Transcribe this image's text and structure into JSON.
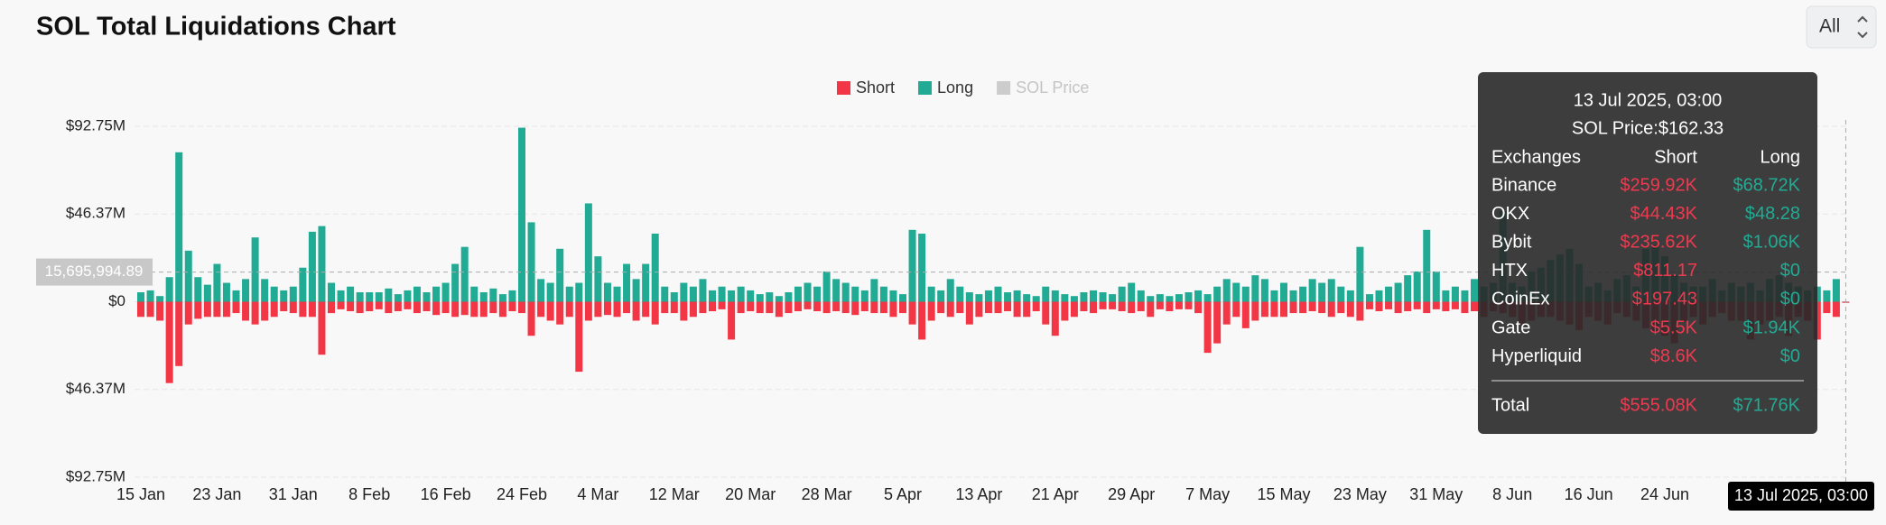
{
  "chart_data": {
    "type": "bar",
    "title": "SOL Total Liquidations Chart",
    "selector": "All",
    "categories": [
      "15 Jan",
      null,
      null,
      null,
      null,
      null,
      null,
      null,
      "23 Jan",
      null,
      null,
      null,
      null,
      null,
      null,
      null,
      "31 Jan",
      null,
      null,
      null,
      null,
      null,
      null,
      null,
      "8 Feb",
      null,
      null,
      null,
      null,
      null,
      null,
      null,
      "16 Feb",
      null,
      null,
      null,
      null,
      null,
      null,
      null,
      "24 Feb",
      null,
      null,
      null,
      null,
      null,
      null,
      null,
      "4 Mar",
      null,
      null,
      null,
      null,
      null,
      null,
      null,
      "12 Mar",
      null,
      null,
      null,
      null,
      null,
      null,
      null,
      "20 Mar",
      null,
      null,
      null,
      null,
      null,
      null,
      null,
      "28 Mar",
      null,
      null,
      null,
      null,
      null,
      null,
      null,
      "5 Apr",
      null,
      null,
      null,
      null,
      null,
      null,
      null,
      "13 Apr",
      null,
      null,
      null,
      null,
      null,
      null,
      null,
      "21 Apr",
      null,
      null,
      null,
      null,
      null,
      null,
      null,
      "29 Apr",
      null,
      null,
      null,
      null,
      null,
      null,
      null,
      "7 May",
      null,
      null,
      null,
      null,
      null,
      null,
      null,
      "15 May",
      null,
      null,
      null,
      null,
      null,
      null,
      null,
      "23 May",
      null,
      null,
      null,
      null,
      null,
      null,
      null,
      "31 May",
      null,
      null,
      null,
      null,
      null,
      null,
      null,
      "8 Jun",
      null,
      null,
      null,
      null,
      null,
      null,
      null,
      "16 Jun",
      null,
      null,
      null,
      null,
      null,
      null,
      null,
      "24 Jun",
      null,
      null,
      null,
      null,
      null,
      null,
      null,
      null,
      null,
      null,
      null,
      null,
      null,
      null,
      null,
      null,
      null,
      null,
      null
    ],
    "series": [
      {
        "name": "Short",
        "color": "#f23645",
        "values": [
          -8,
          -8,
          -10,
          -43,
          -34,
          -12,
          -9,
          -8,
          -8,
          -8,
          -6,
          -10,
          -12,
          -10,
          -8,
          -5,
          -6,
          -8,
          -8,
          -28,
          -6,
          -4,
          -5,
          -6,
          -5,
          -4,
          -6,
          -5,
          -4,
          -6,
          -5,
          -7,
          -6,
          -8,
          -7,
          -8,
          -8,
          -6,
          -8,
          -5,
          -6,
          -18,
          -8,
          -10,
          -12,
          -8,
          -37,
          -10,
          -8,
          -7,
          -8,
          -6,
          -10,
          -8,
          -12,
          -6,
          -6,
          -10,
          -8,
          -6,
          -5,
          -4,
          -20,
          -6,
          -5,
          -6,
          -6,
          -8,
          -6,
          -5,
          -4,
          -5,
          -6,
          -5,
          -6,
          -7,
          -5,
          -6,
          -6,
          -8,
          -6,
          -12,
          -20,
          -10,
          -6,
          -8,
          -6,
          -12,
          -8,
          -6,
          -6,
          -5,
          -8,
          -8,
          -5,
          -12,
          -18,
          -10,
          -8,
          -5,
          -6,
          -4,
          -4,
          -5,
          -6,
          -5,
          -8,
          -4,
          -5,
          -4,
          -4,
          -6,
          -27,
          -22,
          -12,
          -8,
          -14,
          -10,
          -8,
          -8,
          -8,
          -6,
          -6,
          -5,
          -6,
          -8,
          -6,
          -8,
          -10,
          -4,
          -5,
          -4,
          -6,
          -5,
          -4,
          -6,
          -4,
          -5,
          -4,
          -6,
          -5,
          -8,
          -5,
          -6,
          -8,
          -12,
          -10,
          -8,
          -8,
          -10,
          -12,
          -15,
          -8,
          -10,
          -12,
          -6,
          -8,
          -10,
          -14,
          -16,
          -18,
          -22,
          -10,
          -8,
          -12,
          -8,
          -6,
          -10,
          -10,
          -20,
          -12,
          -10,
          -8,
          -18,
          -8,
          -10,
          -20,
          -6,
          -8,
          -0.56
        ]
      },
      {
        "name": "Long",
        "color": "#22ab94",
        "values": [
          5,
          6,
          3,
          13,
          79,
          27,
          13,
          9,
          20,
          10,
          6,
          12,
          34,
          12,
          8,
          6,
          8,
          18,
          37,
          40,
          10,
          6,
          8,
          5,
          5,
          5,
          7,
          4,
          6,
          8,
          5,
          8,
          10,
          20,
          29,
          8,
          5,
          7,
          4,
          6,
          92,
          42,
          12,
          10,
          28,
          8,
          10,
          52,
          24,
          10,
          8,
          20,
          12,
          20,
          36,
          8,
          5,
          10,
          8,
          12,
          6,
          8,
          6,
          8,
          6,
          4,
          5,
          3,
          5,
          8,
          10,
          8,
          16,
          12,
          10,
          8,
          6,
          12,
          8,
          6,
          4,
          38,
          36,
          8,
          6,
          12,
          8,
          5,
          4,
          6,
          8,
          5,
          6,
          4,
          3,
          8,
          6,
          4,
          3,
          5,
          6,
          5,
          4,
          8,
          10,
          6,
          3,
          4,
          3,
          4,
          5,
          6,
          4,
          8,
          12,
          10,
          8,
          14,
          12,
          6,
          10,
          6,
          8,
          12,
          10,
          12,
          8,
          6,
          29,
          4,
          6,
          8,
          10,
          14,
          16,
          38,
          16,
          6,
          8,
          6,
          12,
          8,
          10,
          48,
          10,
          8,
          16,
          18,
          22,
          25,
          28,
          20,
          8,
          10,
          6,
          12,
          14,
          8,
          28,
          30,
          24,
          14,
          10,
          8,
          8,
          12,
          6,
          10,
          8,
          10,
          6,
          12,
          14,
          10,
          8,
          6,
          8,
          6,
          12,
          0.07
        ]
      },
      {
        "name": "SOL Price",
        "color": "#cccccc",
        "hidden": true
      }
    ],
    "ylim": [
      -92.75,
      92.75
    ],
    "yticks": [
      {
        "value": 92.75,
        "label": "$92.75M"
      },
      {
        "value": 46.37,
        "label": "$46.37M"
      },
      {
        "value": 0,
        "label": "$0"
      },
      {
        "value": -46.37,
        "label": "$46.37M"
      },
      {
        "value": -92.75,
        "label": "$92.75M"
      }
    ],
    "grid": true,
    "legend": "top",
    "crosshair_y": {
      "value": 15.69599489,
      "label": "15,695,994.89"
    },
    "tooltip": {
      "title": "13 Jul 2025, 03:00",
      "price": "SOL Price:$162.33",
      "headers": [
        "Exchanges",
        "Short",
        "Long"
      ],
      "rows": [
        [
          "Binance",
          "$259.92K",
          "$68.72K"
        ],
        [
          "OKX",
          "$44.43K",
          "$48.28"
        ],
        [
          "Bybit",
          "$235.62K",
          "$1.06K"
        ],
        [
          "HTX",
          "$811.17",
          "$0"
        ],
        [
          "CoinEx",
          "$197.43",
          "$0"
        ],
        [
          "Gate",
          "$5.5K",
          "$1.94K"
        ],
        [
          "Hyperliquid",
          "$8.6K",
          "$0"
        ]
      ],
      "total": [
        "Total",
        "$555.08K",
        "$71.76K"
      ]
    }
  }
}
